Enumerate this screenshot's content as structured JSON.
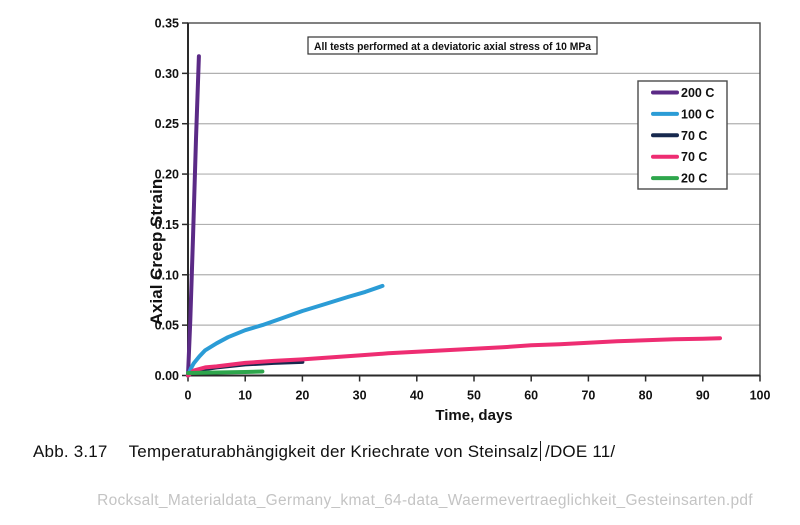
{
  "figure_caption": {
    "label": "Abb. 3.17",
    "title": "Temperaturabhängigkeit der Kriechrate von Steinsalz",
    "reference": "/DOE 11/"
  },
  "footer": {
    "filename": "Rocksalt_Materialdata_Germany_kmat_64-data_Waermevertraeglichkeit_Gesteinsarten.pdf"
  },
  "chart_data": {
    "type": "line",
    "title": "",
    "annotation": "All tests performed at a deviatoric axial stress of 10 MPa",
    "xlabel": "Time, days",
    "ylabel": "Axial Creep Strain",
    "xlim": [
      0,
      100
    ],
    "ylim": [
      0,
      0.35
    ],
    "xticks": [
      0,
      10,
      20,
      30,
      40,
      50,
      60,
      70,
      80,
      90,
      100
    ],
    "ytick_labels": [
      "0.00",
      "0.05",
      "0.10",
      "0.15",
      "0.20",
      "0.25",
      "0.30",
      "0.35"
    ],
    "grid": "horizontal-only",
    "legend_position": "upper-right",
    "colors": {
      "grid": "#b0b0b0",
      "axis": "#2a2a2a",
      "border": "#4a4a4a",
      "text": "#111111",
      "legend_border": "#4a4a4a"
    },
    "series": [
      {
        "name": "200 C",
        "color": "#5b2a86",
        "points": [
          [
            0,
            0
          ],
          [
            0.4,
            0.055
          ],
          [
            0.9,
            0.14
          ],
          [
            1.4,
            0.235
          ],
          [
            1.9,
            0.317
          ]
        ]
      },
      {
        "name": "100 C",
        "color": "#2b9cd6",
        "points": [
          [
            0,
            0
          ],
          [
            0.5,
            0.007
          ],
          [
            1,
            0.012
          ],
          [
            2,
            0.019
          ],
          [
            3,
            0.025
          ],
          [
            5,
            0.032
          ],
          [
            7,
            0.038
          ],
          [
            10,
            0.045
          ],
          [
            13,
            0.05
          ],
          [
            16,
            0.056
          ],
          [
            20,
            0.064
          ],
          [
            24,
            0.071
          ],
          [
            28,
            0.078
          ],
          [
            31,
            0.083
          ],
          [
            34,
            0.089
          ]
        ]
      },
      {
        "name": "70 C",
        "color": "#17294e",
        "points": [
          [
            0,
            0
          ],
          [
            1,
            0.004
          ],
          [
            3,
            0.0065
          ],
          [
            5,
            0.008
          ],
          [
            10,
            0.011
          ],
          [
            15,
            0.0125
          ],
          [
            20,
            0.0135
          ]
        ]
      },
      {
        "name": "70 C",
        "color": "#ee2d72",
        "points": [
          [
            0,
            0
          ],
          [
            1,
            0.005
          ],
          [
            3,
            0.008
          ],
          [
            5,
            0.009
          ],
          [
            10,
            0.0125
          ],
          [
            15,
            0.0145
          ],
          [
            20,
            0.016
          ],
          [
            25,
            0.018
          ],
          [
            30,
            0.02
          ],
          [
            35,
            0.022
          ],
          [
            40,
            0.0235
          ],
          [
            45,
            0.025
          ],
          [
            50,
            0.0265
          ],
          [
            55,
            0.028
          ],
          [
            60,
            0.03
          ],
          [
            65,
            0.031
          ],
          [
            70,
            0.0325
          ],
          [
            75,
            0.034
          ],
          [
            80,
            0.035
          ],
          [
            85,
            0.036
          ],
          [
            90,
            0.0365
          ],
          [
            93,
            0.037
          ]
        ]
      },
      {
        "name": "20 C",
        "color": "#2ea64c",
        "points": [
          [
            0,
            0.0025
          ],
          [
            5,
            0.003
          ],
          [
            10,
            0.0035
          ],
          [
            13,
            0.004
          ]
        ]
      }
    ]
  }
}
